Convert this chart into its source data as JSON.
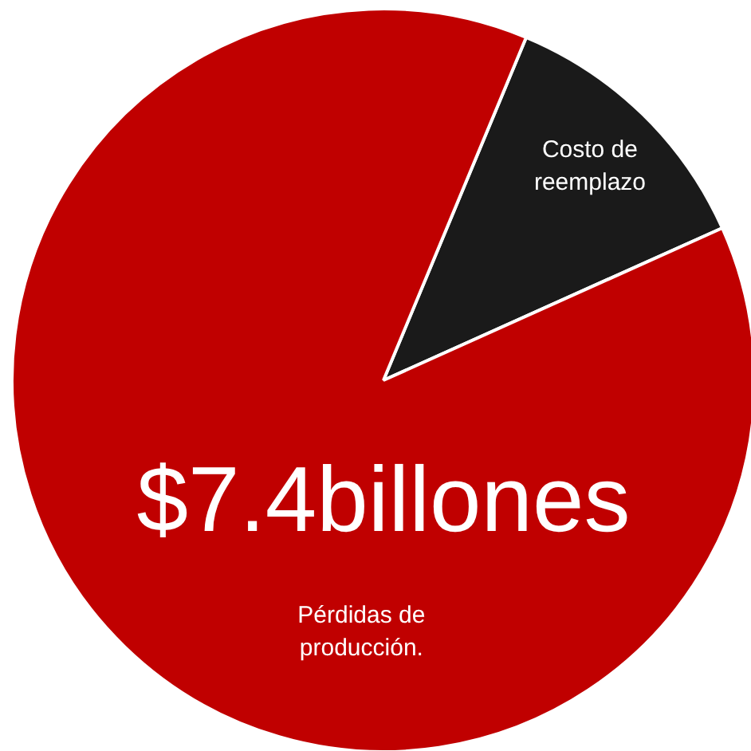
{
  "chart_data": {
    "type": "pie",
    "categories": [
      "Costo de reemplazo",
      "Pérdidas de producción."
    ],
    "values": [
      12,
      88
    ],
    "colors": [
      "#1a1a1a",
      "#c00000"
    ],
    "annotations": [
      "$7.4billones"
    ]
  }
}
